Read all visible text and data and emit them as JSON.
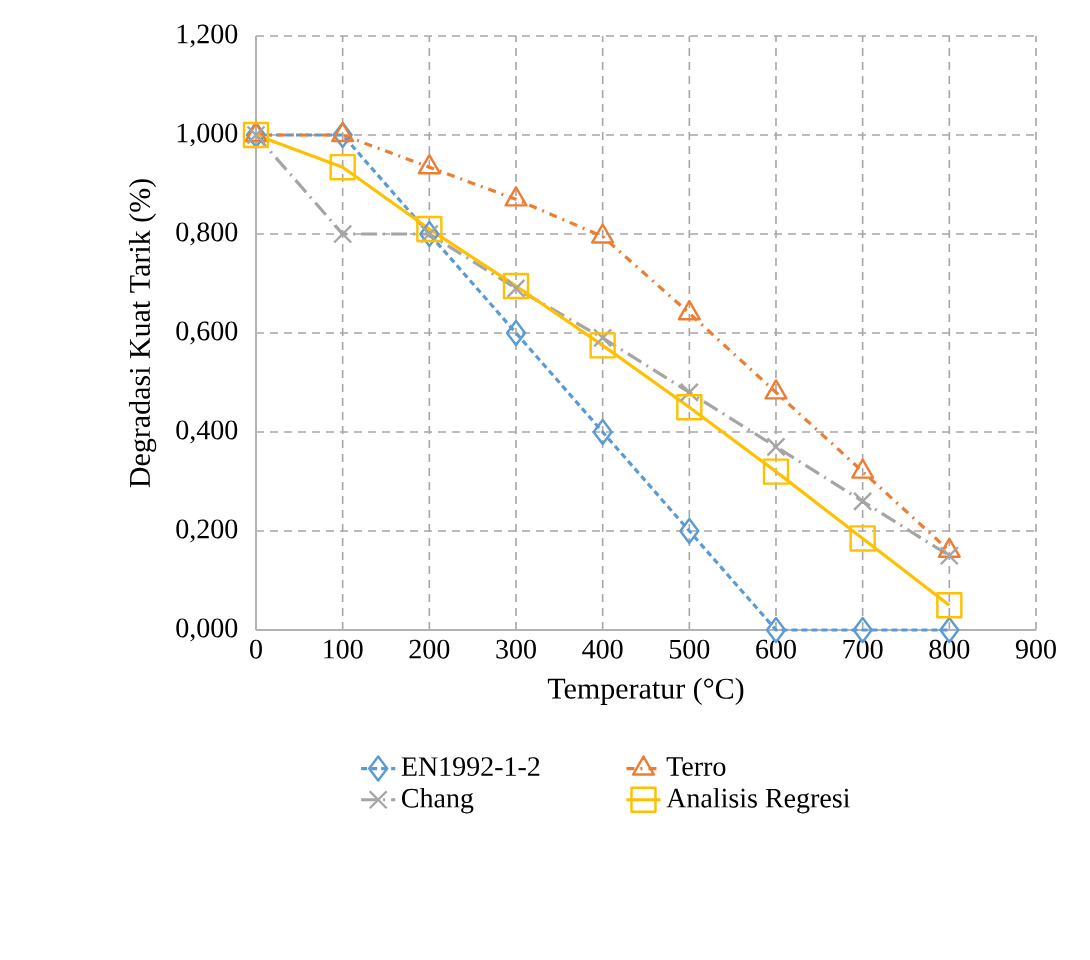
{
  "chart_data": {
    "type": "line",
    "xlabel": "Temperatur (°C)",
    "ylabel": "Degradasi Kuat Tarik (%)",
    "x": [
      0,
      100,
      200,
      300,
      400,
      500,
      600,
      700,
      800
    ],
    "xlim": [
      0,
      900
    ],
    "xticks": [
      0,
      100,
      200,
      300,
      400,
      500,
      600,
      700,
      800,
      900
    ],
    "ylim": [
      0,
      1.2
    ],
    "yticks": [
      {
        "value": 0,
        "label": "0,000"
      },
      {
        "value": 0.2,
        "label": "0,200"
      },
      {
        "value": 0.4,
        "label": "0,400"
      },
      {
        "value": 0.6,
        "label": "0,600"
      },
      {
        "value": 0.8,
        "label": "0,800"
      },
      {
        "value": 1.0,
        "label": "1,000"
      },
      {
        "value": 1.2,
        "label": "1,200"
      }
    ],
    "grid": true,
    "legend": "bottom",
    "series": [
      {
        "name": "EN1992-1-2",
        "color": "#5b9bd5",
        "marker": "diamond",
        "line_style": "dashed",
        "values": [
          1.0,
          1.0,
          0.8,
          0.6,
          0.4,
          0.2,
          0.0,
          0.0,
          0.0
        ]
      },
      {
        "name": "Terro",
        "color": "#ed7d31",
        "marker": "triangle",
        "line_style": "dashdot",
        "values": [
          1.0,
          1.0,
          0.935,
          0.87,
          0.795,
          0.64,
          0.48,
          0.32,
          0.16
        ]
      },
      {
        "name": "Chang",
        "color": "#a5a5a5",
        "marker": "cross",
        "line_style": "longdashdot",
        "values": [
          1.0,
          0.8,
          0.8,
          0.69,
          0.59,
          0.48,
          0.37,
          0.26,
          0.15
        ]
      },
      {
        "name": "Analisis Regresi",
        "color": "#ffc000",
        "marker": "square",
        "line_style": "solid",
        "values": [
          1.0,
          0.935,
          0.81,
          0.695,
          0.575,
          0.45,
          0.32,
          0.185,
          0.05
        ]
      }
    ]
  }
}
